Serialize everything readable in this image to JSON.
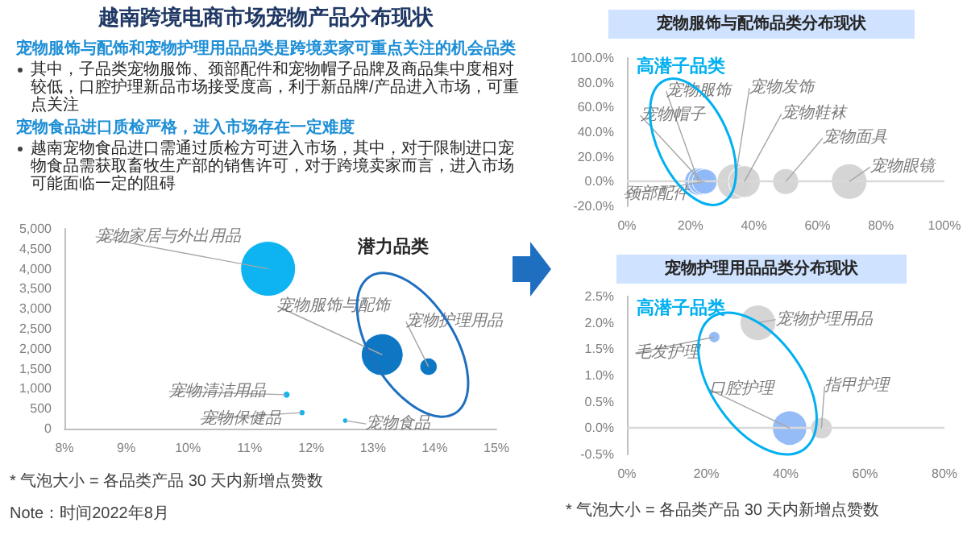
{
  "chart_data": [
    {
      "type": "other",
      "title": "越南跨境电商市场宠物产品分布现状",
      "annotations": [
        "宠物服饰与配饰和宠物护理用品品类是跨境卖家可重点关注的机会品类",
        "其中，子品类宠物服饰、颈部配件和宠物帽子品牌及商品集中度相对较低，口腔护理新品市场接受度高，利于新品牌/产品进入市场，可重点关注",
        "宠物食品进口质检严格，进入市场存在一定难度",
        "越南宠物食品进口需通过质检方可进入市场，其中，对于限制进口宠物食品需获取畜牧生产部的销售许可，对于跨境卖家而言，进入市场可能面临一定的阻碍"
      ]
    },
    {
      "type": "bubble",
      "x": [
        11.3,
        13.15,
        13.9,
        11.6,
        11.85,
        12.55
      ],
      "values": [
        4000,
        1850,
        1550,
        850,
        400,
        200
      ],
      "sizes": [
        1,
        0.58,
        0.1,
        0.015,
        0.012,
        0.01
      ],
      "colors": [
        "#00b0f0",
        "#0070c0",
        "#0070c0",
        "#00b0f0",
        "#00b0f0",
        "#00b0f0"
      ],
      "xlim": [
        8,
        15
      ],
      "xticks": [
        {
          "value": 8,
          "label": "8%"
        },
        {
          "value": 9,
          "label": "9%"
        },
        {
          "value": 10,
          "label": "10%"
        },
        {
          "value": 11,
          "label": "11%"
        },
        {
          "value": 12,
          "label": "12%"
        },
        {
          "value": 13,
          "label": "13%"
        },
        {
          "value": 14,
          "label": "14%"
        },
        {
          "value": 15,
          "label": "15%"
        }
      ],
      "ylim": [
        0,
        5000
      ],
      "yticks": [
        0,
        500,
        {
          "value": 1000,
          "label": "1,000"
        },
        {
          "value": 1500,
          "label": "1,500"
        },
        {
          "value": 2000,
          "label": "2,000"
        },
        {
          "value": 2500,
          "label": "2,500"
        },
        {
          "value": 3000,
          "label": "3,000"
        },
        {
          "value": 3500,
          "label": "3,500"
        },
        {
          "value": 4000,
          "label": "4,000"
        },
        {
          "value": 4500,
          "label": "4,500"
        },
        {
          "value": 5000,
          "label": "5,000"
        }
      ],
      "grid": false,
      "annotations": [
        {
          "text": "宠物家居与外出用品",
          "x": 11.3,
          "y": 4000
        },
        {
          "text": "宠物服饰与配饰",
          "x": 13.15,
          "y": 1850
        },
        {
          "text": "宠物护理用品",
          "x": 13.9,
          "y": 1550
        },
        {
          "text": "宠物清洁用品",
          "x": 11.6,
          "y": 850
        },
        {
          "text": "宠物保健品",
          "x": 11.85,
          "y": 400
        },
        {
          "text": "宠物食品",
          "x": 12.55,
          "y": 200
        },
        "潜力品类",
        "* 气泡大小 = 各品类产品 30 天内新增点赞数",
        "Note：时间2022年8月"
      ]
    },
    {
      "type": "bubble",
      "title": "宠物服饰与配饰品类分布现状",
      "x": [
        22.5,
        23.5,
        24.5,
        34,
        37,
        50,
        70
      ],
      "values": [
        0,
        0,
        0,
        0,
        0,
        0,
        0
      ],
      "sizes": [
        0.6,
        0.55,
        0.5,
        1,
        0.8,
        0.53,
        1
      ],
      "colors": [
        "#8fb8f7",
        "#8fb8f7",
        "#8fb8f7",
        "#d3d3d3",
        "#d3d3d3",
        "#d3d3d3",
        "#d3d3d3"
      ],
      "xlim": [
        0,
        100
      ],
      "xticks": [
        {
          "value": 0,
          "label": "0%"
        },
        {
          "value": 20,
          "label": "20%"
        },
        {
          "value": 40,
          "label": "40%"
        },
        {
          "value": 60,
          "label": "60%"
        },
        {
          "value": 80,
          "label": "80%"
        },
        {
          "value": 100,
          "label": "100%"
        }
      ],
      "ylim": [
        -20,
        100
      ],
      "yticks": [
        {
          "value": -20,
          "label": "-20.0%"
        },
        {
          "value": 0,
          "label": "0.0%"
        },
        {
          "value": 20,
          "label": "20.0%"
        },
        {
          "value": 40,
          "label": "40.0%"
        },
        {
          "value": 60,
          "label": "60.0%"
        },
        {
          "value": 80,
          "label": "80.0%"
        },
        {
          "value": 100,
          "label": "100.0%"
        }
      ],
      "grid": false,
      "ref_lines": [
        {
          "axis": "y",
          "value": 0,
          "color": "#d9d9d9"
        }
      ],
      "annotations": [
        {
          "text": "宠物服饰",
          "x": 22.5,
          "y": 0
        },
        {
          "text": "宠物帽子",
          "x": 23.5,
          "y": 0
        },
        {
          "text": "颈部配件",
          "x": 24.5,
          "y": 0
        },
        {
          "text": "宠物发饰",
          "x": 34,
          "y": 0
        },
        {
          "text": "宠物鞋袜",
          "x": 37,
          "y": 0
        },
        {
          "text": "宠物面具",
          "x": 50,
          "y": 0
        },
        {
          "text": "宠物眼镜",
          "x": 70,
          "y": 0
        },
        "高潜子品类"
      ]
    },
    {
      "type": "bubble",
      "title": "宠物护理用品品类分布现状",
      "x": [
        33,
        22,
        41,
        49
      ],
      "values": [
        2.0,
        1.73,
        0,
        0
      ],
      "sizes": [
        1,
        0.1,
        0.94,
        0.37
      ],
      "colors": [
        "#d3d3d3",
        "#8fb8f7",
        "#8fb8f7",
        "#d3d3d3"
      ],
      "xlim": [
        0,
        80
      ],
      "xticks": [
        {
          "value": 0,
          "label": "0%"
        },
        {
          "value": 20,
          "label": "20%"
        },
        {
          "value": 40,
          "label": "40%"
        },
        {
          "value": 60,
          "label": "60%"
        },
        {
          "value": 80,
          "label": "80%"
        }
      ],
      "ylim": [
        -0.5,
        2.5
      ],
      "yticks": [
        {
          "value": -0.5,
          "label": "-0.5%"
        },
        {
          "value": 0,
          "label": "0.0%"
        },
        {
          "value": 0.5,
          "label": "0.5%"
        },
        {
          "value": 1,
          "label": "1.0%"
        },
        {
          "value": 1.5,
          "label": "1.5%"
        },
        {
          "value": 2,
          "label": "2.0%"
        },
        {
          "value": 2.5,
          "label": "2.5%"
        }
      ],
      "grid": false,
      "ref_lines": [
        {
          "axis": "y",
          "value": 0,
          "color": "#d9d9d9"
        }
      ],
      "annotations": [
        {
          "text": "宠物护理用品",
          "x": 33,
          "y": 2.0
        },
        {
          "text": "毛发护理",
          "x": 22,
          "y": 1.73
        },
        {
          "text": "口腔护理",
          "x": 41,
          "y": 0
        },
        {
          "text": "指甲护理",
          "x": 49,
          "y": 0
        },
        "高潜子品类",
        "* 气泡大小 = 各品类产品 30 天内新增点赞数"
      ]
    }
  ]
}
